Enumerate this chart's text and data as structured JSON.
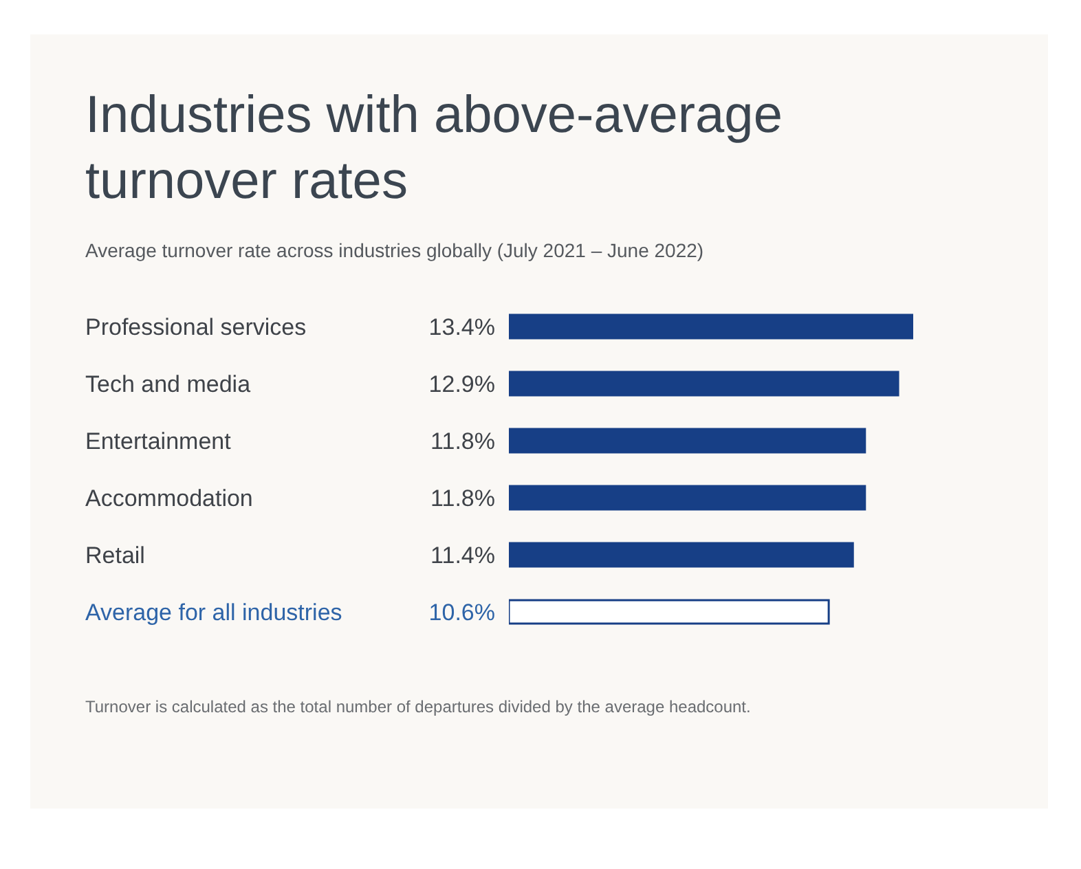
{
  "chart_data": {
    "type": "bar",
    "orientation": "horizontal",
    "title": "Industries with above-average turnover rates",
    "subtitle": "Average turnover rate across industries globally (July 2021 – June 2022)",
    "categories": [
      "Professional services",
      "Tech and media",
      "Entertainment",
      "Accommodation",
      "Retail",
      "Average for all industries"
    ],
    "values": [
      13.4,
      12.9,
      11.8,
      11.8,
      11.4,
      10.6
    ],
    "value_labels": [
      "13.4%",
      "12.9%",
      "11.8%",
      "11.8%",
      "11.4%",
      "10.6%"
    ],
    "color": "#173f86",
    "colors": [
      "#173f86",
      "#173f86",
      "#173f86",
      "#173f86",
      "#173f86",
      "#ffffff"
    ],
    "annotations": [
      "Turnover is calculated as the total number of departures divided by the average headcount."
    ]
  }
}
